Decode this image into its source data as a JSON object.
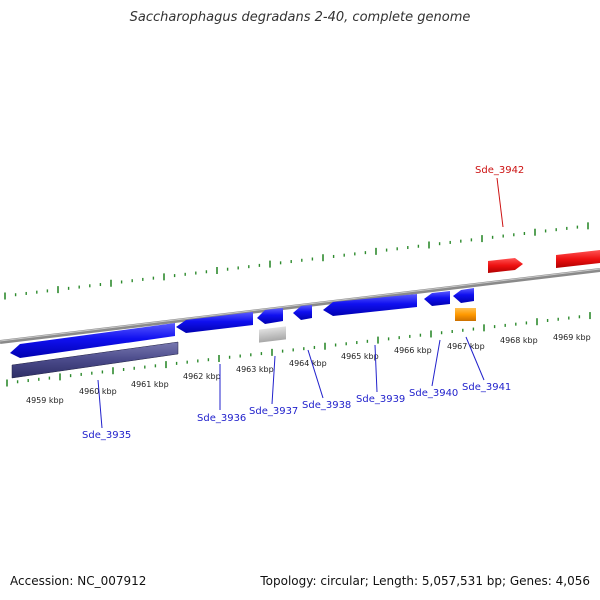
{
  "title": "Saccharophagus degradans 2-40, complete genome",
  "footer": {
    "accession": "Accession: NC_007912",
    "summary": "Topology: circular; Length: 5,057,531 bp; Genes: 4,056"
  },
  "colors": {
    "forward_gene": "#1f1ff0",
    "reverse_gene": "#1f1ff0",
    "highlight_gene": "#ee1111",
    "rna_gene": "#ff9900",
    "pseudo_gene": "#bbbbbb",
    "operon": "#4a4a8a",
    "backbone": "#8a8a8a",
    "ticks": "#2e8b2e",
    "label_blue": "#2222cc",
    "label_red": "#cc1111"
  },
  "axis_labels": [
    "4959 kbp",
    "4960 kbp",
    "4961 kbp",
    "4962 kbp",
    "4963 kbp",
    "4964 kbp",
    "4965 kbp",
    "4966 kbp",
    "4967 kbp",
    "4968 kbp",
    "4969 kbp"
  ],
  "genes": [
    {
      "label": "Sde_3935",
      "color": "blue"
    },
    {
      "label": "Sde_3936",
      "color": "blue"
    },
    {
      "label": "Sde_3937",
      "color": "blue"
    },
    {
      "label": "Sde_3938",
      "color": "blue"
    },
    {
      "label": "Sde_3939",
      "color": "blue"
    },
    {
      "label": "Sde_3940",
      "color": "blue"
    },
    {
      "label": "Sde_3941",
      "color": "blue"
    },
    {
      "label": "Sde_3942",
      "color": "red"
    }
  ]
}
